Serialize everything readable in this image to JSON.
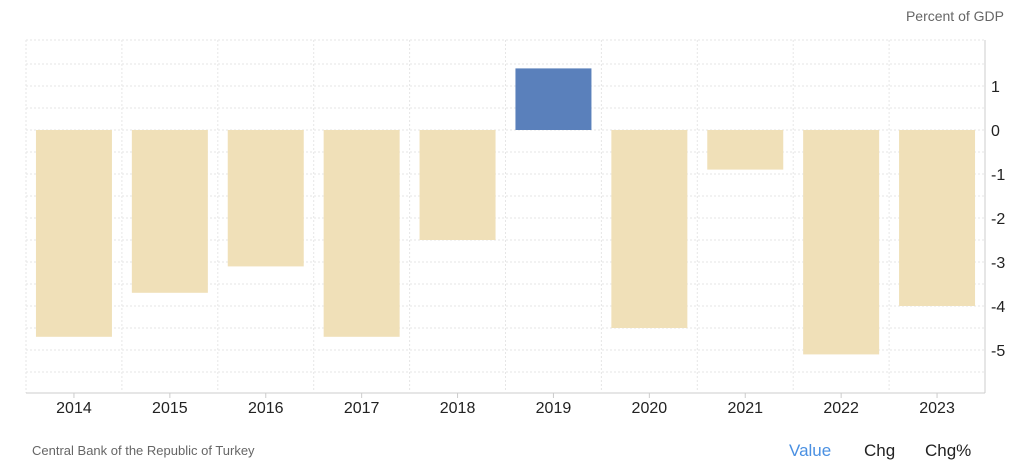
{
  "header": {
    "unit_label": "Percent of GDP"
  },
  "footer": {
    "source": "Central Bank of the Republic of Turkey",
    "tabs": [
      {
        "label": "Value",
        "active": true
      },
      {
        "label": "Chg",
        "active": false
      },
      {
        "label": "Chg%",
        "active": false
      }
    ]
  },
  "colors": {
    "negative": "#f0e0b8",
    "positive": "#5a80bb",
    "active_tab": "#4a90e2",
    "grid": "#e6e6e6"
  },
  "chart_data": {
    "type": "bar",
    "title": "",
    "ylabel": "Percent of GDP",
    "categories": [
      "2014",
      "2015",
      "2016",
      "2017",
      "2018",
      "2019",
      "2020",
      "2021",
      "2022",
      "2023"
    ],
    "values": [
      -4.7,
      -3.7,
      -3.1,
      -4.7,
      -2.5,
      1.4,
      -4.5,
      -0.9,
      -5.1,
      -4.0
    ],
    "yticks": [
      1,
      0,
      -1,
      -2,
      -3,
      -4,
      -5
    ],
    "ylim": [
      -6.0,
      2.0
    ]
  }
}
